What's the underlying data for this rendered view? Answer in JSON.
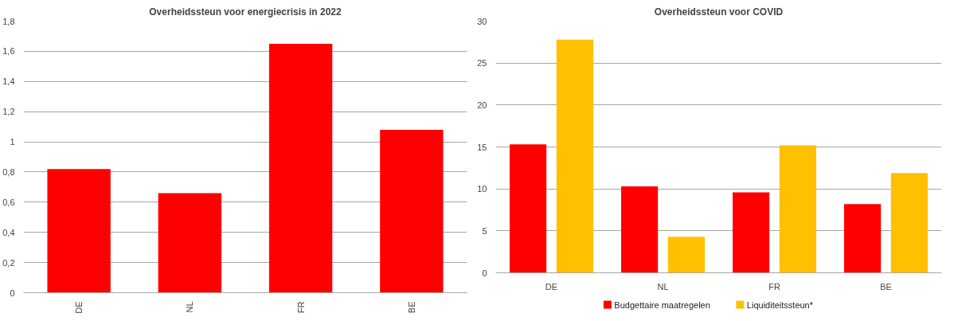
{
  "chart_data": [
    {
      "type": "bar",
      "title": "Overheidssteun voor energiecrisis in 2022",
      "categories": [
        "DE",
        "NL",
        "FR",
        "BE"
      ],
      "values": [
        0.82,
        0.66,
        1.65,
        1.08
      ],
      "color": "#ff0000",
      "ylim": [
        0,
        1.8
      ],
      "yticks": [
        {
          "value": 0,
          "label": "0"
        },
        {
          "value": 0.2,
          "label": "0,2"
        },
        {
          "value": 0.4,
          "label": "0,4"
        },
        {
          "value": 0.6,
          "label": "0,6"
        },
        {
          "value": 0.8,
          "label": "0,8"
        },
        {
          "value": 1,
          "label": "1"
        },
        {
          "value": 1.2,
          "label": "1,2"
        },
        {
          "value": 1.4,
          "label": "1,4"
        },
        {
          "value": 1.6,
          "label": "1,6"
        },
        {
          "value": 1.8,
          "label": "1,8"
        }
      ],
      "grid": "y"
    },
    {
      "type": "bar",
      "title": "Overheidssteun voor COVID",
      "categories": [
        "DE",
        "NL",
        "FR",
        "BE"
      ],
      "series": [
        {
          "name": "Budgettaire maatregelen",
          "color": "#ff0000",
          "values": [
            15.3,
            10.3,
            9.6,
            8.2
          ]
        },
        {
          "name": "Liquiditeitssteun*",
          "color": "#ffc000",
          "values": [
            27.8,
            4.3,
            15.2,
            11.9
          ]
        }
      ],
      "ylim": [
        0,
        30
      ],
      "yticks": [
        0,
        5,
        10,
        15,
        20,
        25,
        30
      ],
      "grid": "y",
      "legend": "bottom"
    }
  ]
}
